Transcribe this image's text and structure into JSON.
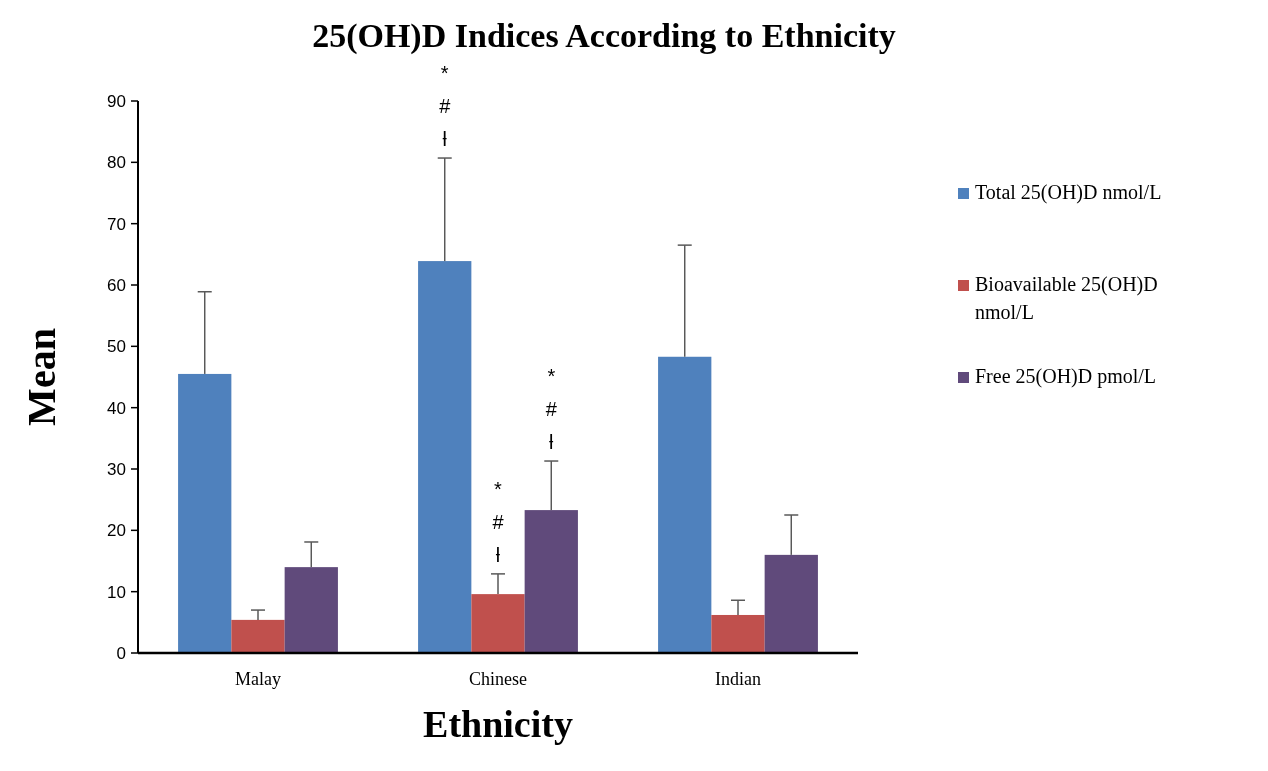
{
  "chart_data": {
    "type": "bar",
    "title": "25(OH)D Indices According to Ethnicity",
    "xlabel": "Ethnicity",
    "ylabel": "Mean",
    "categories": [
      "Malay",
      "Chinese",
      "Indian"
    ],
    "series": [
      {
        "name": "Total 25(OH)D nmol/L",
        "color": "#4f81bd",
        "values": [
          45.5,
          63.9,
          48.3
        ],
        "errors": [
          [
            45.5,
            58.9
          ],
          [
            63.9,
            80.7
          ],
          [
            48.3,
            66.5
          ]
        ]
      },
      {
        "name": "Bioavailable 25(OH)D nmol/L",
        "color": "#c0504d",
        "values": [
          5.4,
          9.6,
          6.2
        ],
        "errors": [
          [
            5.4,
            7.0
          ],
          [
            9.6,
            12.9
          ],
          [
            6.2,
            8.6
          ]
        ]
      },
      {
        "name": "Free 25(OH)D pmol/L",
        "color": "#604a7b",
        "values": [
          14.0,
          23.3,
          16.0
        ],
        "errors": [
          [
            14.0,
            18.1
          ],
          [
            23.3,
            31.3
          ],
          [
            16.0,
            22.5
          ]
        ]
      }
    ],
    "annotations": [
      "* # ƚ",
      "* # ƚ",
      "* # ƚ"
    ],
    "ylim": [
      0,
      90
    ],
    "yticks": [
      0,
      10,
      20,
      30,
      40,
      50,
      60,
      70,
      80,
      90
    ],
    "grid": false,
    "legend": "right"
  }
}
